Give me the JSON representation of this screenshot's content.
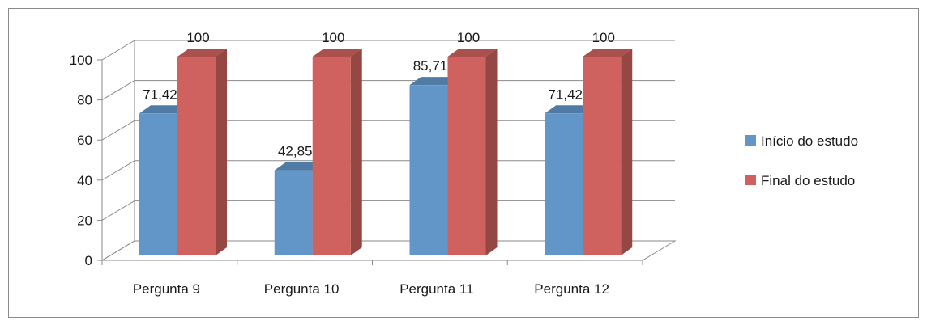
{
  "chart_data": {
    "type": "bar",
    "categories": [
      "Pergunta 9",
      "Pergunta 10",
      "Pergunta 11",
      "Pergunta 12"
    ],
    "series": [
      {
        "name": "Início do estudo",
        "values": [
          71.42,
          42.85,
          85.71,
          71.42
        ],
        "labels": [
          "71,42",
          "42,85",
          "85,71",
          "71,42"
        ],
        "color": "#6296c9"
      },
      {
        "name": "Final do estudo",
        "values": [
          100,
          100,
          100,
          100
        ],
        "labels": [
          "100",
          "100",
          "100",
          "100"
        ],
        "color": "#cf625e"
      }
    ],
    "y_ticks": [
      "0",
      "20",
      "40",
      "60",
      "80",
      "100"
    ],
    "ylim": [
      0,
      100
    ],
    "grid": true,
    "three_d": true,
    "legend_position": "right",
    "title": "",
    "xlabel": "",
    "ylabel": ""
  }
}
